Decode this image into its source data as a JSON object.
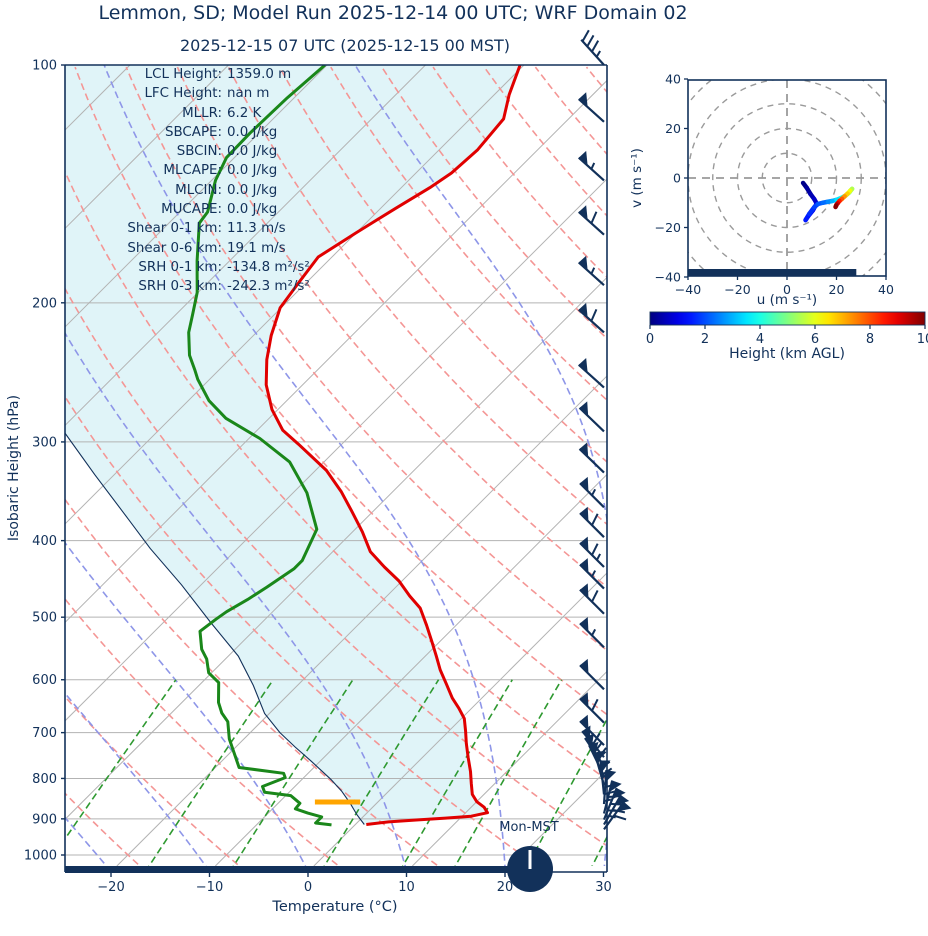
{
  "title": "Lemmon, SD; Model Run 2025-12-14 00 UTC; WRF Domain 02",
  "subtitle": "2025-12-15 07 UTC  (2025-12-15 00 MST)",
  "clock": {
    "label": "Mon-MST",
    "hand": "up"
  },
  "colors": {
    "navy": "#12315a",
    "temperature": "#e00000",
    "dewpoint": "#1a871a",
    "parcel": "#12315a",
    "dry_adiabat": "#f49695",
    "moist_adiabat": "#8e96e8",
    "mixing_line": "#2e9930",
    "grid_gray": "#b3b3b3",
    "shade_fill": "#e0f4f8",
    "lcl_marker": "#ffa500"
  },
  "stats": [
    {
      "label": "LCL Height:",
      "value": "1359.0 m"
    },
    {
      "label": "LFC Height:",
      "value": "nan m"
    },
    {
      "label": "MLLR:",
      "value": "6.2 K"
    },
    {
      "label": "SBCAPE:",
      "value": "0.0 J/kg"
    },
    {
      "label": "SBCIN:",
      "value": "0.0 J/kg"
    },
    {
      "label": "MLCAPE:",
      "value": "0.0 J/kg"
    },
    {
      "label": "MLCIN:",
      "value": "0.0 J/kg"
    },
    {
      "label": "MUCAPE:",
      "value": "0.0 J/kg"
    },
    {
      "label": "Shear 0-1 km:",
      "value": "11.3 m/s"
    },
    {
      "label": "Shear 0-6 km:",
      "value": "19.1 m/s"
    },
    {
      "label": "SRH 0-1 km:",
      "value": "-134.8 m²/s²"
    },
    {
      "label": "SRH 0-3 km:",
      "value": "-242.3 m²/s²"
    }
  ],
  "chart_data": {
    "type": "line",
    "subtype": "skewt-log-p-sounding-with-hodograph",
    "skewt": {
      "xlabel": "Temperature (°C)",
      "ylabel": "Isobaric Height (hPa)",
      "pressure_ticks": [
        100,
        200,
        300,
        400,
        500,
        600,
        700,
        800,
        900,
        1000
      ],
      "temp_ticks": [
        -20,
        -10,
        0,
        10,
        20,
        30
      ],
      "p_range": [
        100,
        1050
      ],
      "skew_deg": 45,
      "isotherm_range": [
        -120,
        40,
        10
      ],
      "dry_adiabat_range": [
        -40,
        210,
        10
      ],
      "moist_adiabat_range": [
        -40,
        40,
        10
      ],
      "mixing_ratios_gkg": [
        0.4,
        1,
        2,
        4,
        7,
        10,
        16,
        24,
        32
      ],
      "mixing_line_top_hpa": 600,
      "temperature_profile": [
        [
          100,
          -60.4
        ],
        [
          109,
          -58.5
        ],
        [
          117,
          -56.6
        ],
        [
          128,
          -56.1
        ],
        [
          137,
          -56.4
        ],
        [
          143,
          -57.1
        ],
        [
          152,
          -58.5
        ],
        [
          163,
          -60.0
        ],
        [
          175,
          -61.4
        ],
        [
          188,
          -60.8
        ],
        [
          203,
          -60.1
        ],
        [
          220,
          -58.2
        ],
        [
          236,
          -56.2
        ],
        [
          254,
          -53.7
        ],
        [
          273,
          -50.6
        ],
        [
          290,
          -47.4
        ],
        [
          302,
          -44.4
        ],
        [
          326,
          -38.9
        ],
        [
          347,
          -35.2
        ],
        [
          367,
          -32.2
        ],
        [
          390,
          -29.0
        ],
        [
          413,
          -26.2
        ],
        [
          432,
          -23.2
        ],
        [
          450,
          -20.3
        ],
        [
          470,
          -17.7
        ],
        [
          487,
          -15.4
        ],
        [
          512,
          -13.0
        ],
        [
          537,
          -10.8
        ],
        [
          560,
          -8.9
        ],
        [
          583,
          -7.1
        ],
        [
          608,
          -5.0
        ],
        [
          633,
          -3.0
        ],
        [
          652,
          -1.3
        ],
        [
          672,
          0.3
        ],
        [
          697,
          1.7
        ],
        [
          722,
          3.0
        ],
        [
          752,
          4.6
        ],
        [
          784,
          6.3
        ],
        [
          812,
          7.6
        ],
        [
          838,
          8.8
        ],
        [
          856,
          10.0
        ],
        [
          870,
          11.3
        ],
        [
          884,
          12.2
        ],
        [
          893,
          10.9
        ],
        [
          898,
          8.5
        ],
        [
          903,
          5.7
        ],
        [
          908,
          3.1
        ],
        [
          915,
          1.1
        ]
      ],
      "dewpoint_profile": [
        [
          100,
          -80.2
        ],
        [
          110,
          -80.7
        ],
        [
          122,
          -80.9
        ],
        [
          131,
          -80.8
        ],
        [
          140,
          -79.6
        ],
        [
          153.5,
          -77.2
        ],
        [
          158.6,
          -76.9
        ],
        [
          177,
          -73.3
        ],
        [
          194,
          -70.1
        ],
        [
          207,
          -68.3
        ],
        [
          218,
          -66.9
        ],
        [
          233,
          -64.5
        ],
        [
          243,
          -62.5
        ],
        [
          250,
          -61.2
        ],
        [
          266,
          -57.9
        ],
        [
          280,
          -54.4
        ],
        [
          297,
          -48.9
        ],
        [
          318,
          -43.5
        ],
        [
          348,
          -38.6
        ],
        [
          387,
          -33.9
        ],
        [
          424,
          -32.2
        ],
        [
          434,
          -32.2
        ],
        [
          458,
          -33.1
        ],
        [
          475,
          -33.8
        ],
        [
          492,
          -34.7
        ],
        [
          503,
          -35.0
        ],
        [
          521,
          -35.4
        ],
        [
          549,
          -33.4
        ],
        [
          565,
          -31.9
        ],
        [
          588,
          -30.3
        ],
        [
          605,
          -28.3
        ],
        [
          641,
          -26.3
        ],
        [
          661,
          -24.9
        ],
        [
          678,
          -23.4
        ],
        [
          713,
          -21.5
        ],
        [
          775,
          -17.6
        ],
        [
          788,
          -12.5
        ],
        [
          798,
          -11.9
        ],
        [
          819,
          -13.3
        ],
        [
          833,
          -12.5
        ],
        [
          841,
          -9.5
        ],
        [
          860,
          -7.8
        ],
        [
          874,
          -7.7
        ],
        [
          885,
          -6.0
        ],
        [
          895,
          -4.2
        ],
        [
          911,
          -4.2
        ],
        [
          916,
          -2.4
        ]
      ],
      "parcel_path": [
        [
          292,
          -69.3
        ],
        [
          330,
          -62.0
        ],
        [
          370,
          -55.0
        ],
        [
          409,
          -48.9
        ],
        [
          455,
          -42.0
        ],
        [
          507,
          -35.3
        ],
        [
          560,
          -29.0
        ],
        [
          610,
          -24.5
        ],
        [
          662,
          -20.5
        ],
        [
          700,
          -17.0
        ],
        [
          730,
          -14.0
        ],
        [
          760,
          -11.0
        ],
        [
          802,
          -7.1
        ],
        [
          830,
          -4.8
        ],
        [
          860,
          -2.7
        ],
        [
          890,
          -0.8
        ],
        [
          915,
          0.9
        ]
      ],
      "lcl_marker": {
        "p": 857,
        "t_from": -6.4,
        "t_to": -1.8
      },
      "wind_barbs": [
        {
          "p": 100,
          "pen": 0,
          "full": 3,
          "half": 1,
          "ang": 48
        },
        {
          "p": 118,
          "pen": 1,
          "full": 0,
          "half": 0,
          "ang": 42
        },
        {
          "p": 140,
          "pen": 1,
          "full": 0,
          "half": 1,
          "ang": 42
        },
        {
          "p": 164,
          "pen": 1,
          "full": 1,
          "half": 0,
          "ang": 42
        },
        {
          "p": 190,
          "pen": 1,
          "full": 0,
          "half": 1,
          "ang": 42
        },
        {
          "p": 218,
          "pen": 1,
          "full": 1,
          "half": 0,
          "ang": 42
        },
        {
          "p": 256,
          "pen": 1,
          "full": 0,
          "half": 0,
          "ang": 42
        },
        {
          "p": 291,
          "pen": 1,
          "full": 0,
          "half": 0,
          "ang": 44
        },
        {
          "p": 328,
          "pen": 1,
          "full": 0,
          "half": 0,
          "ang": 44
        },
        {
          "p": 363,
          "pen": 1,
          "full": 0,
          "half": 1,
          "ang": 45
        },
        {
          "p": 396,
          "pen": 1,
          "full": 1,
          "half": 0,
          "ang": 45
        },
        {
          "p": 432,
          "pen": 1,
          "full": 1,
          "half": 1,
          "ang": 45
        },
        {
          "p": 460,
          "pen": 1,
          "full": 0,
          "half": 1,
          "ang": 45
        },
        {
          "p": 495,
          "pen": 1,
          "full": 1,
          "half": 0,
          "ang": 45
        },
        {
          "p": 546,
          "pen": 1,
          "full": 0,
          "half": 1,
          "ang": 45
        },
        {
          "p": 617,
          "pen": 1,
          "full": 0,
          "half": 0,
          "ang": 45
        },
        {
          "p": 680,
          "pen": 1,
          "full": 1,
          "half": 0,
          "ang": 45
        },
        {
          "p": 726,
          "pen": 1,
          "full": 0,
          "half": 0,
          "ang": 45
        },
        {
          "p": 752,
          "pen": 1,
          "full": 1,
          "half": 0,
          "ang": 50
        },
        {
          "p": 772,
          "pen": 1,
          "full": 2,
          "half": 0,
          "ang": 56
        },
        {
          "p": 794,
          "pen": 1,
          "full": 1,
          "half": 1,
          "ang": 64
        },
        {
          "p": 816,
          "pen": 1,
          "full": 2,
          "half": 0,
          "ang": 74
        },
        {
          "p": 838,
          "pen": 1,
          "full": 1,
          "half": 0,
          "ang": 84
        },
        {
          "p": 862,
          "pen": 1,
          "full": 2,
          "half": 1,
          "ang": 94
        },
        {
          "p": 886,
          "pen": 1,
          "full": 1,
          "half": 0,
          "ang": 104
        },
        {
          "p": 902,
          "pen": 1,
          "full": 2,
          "half": 0,
          "ang": 112
        },
        {
          "p": 915,
          "pen": 1,
          "full": 1,
          "half": 1,
          "ang": 120
        },
        {
          "p": 928,
          "pen": 1,
          "full": 1,
          "half": 0,
          "ang": 126
        }
      ]
    },
    "hodograph": {
      "xlabel": "u (m s⁻¹)",
      "ylabel": "v (m s⁻¹)",
      "u_ticks": [
        -40,
        -20,
        0,
        20,
        40
      ],
      "v_ticks": [
        -40,
        -20,
        0,
        20,
        40
      ],
      "ring_radii": [
        10,
        20,
        30,
        40,
        50
      ],
      "axis_range": [
        -40,
        40
      ],
      "surface_bar_u": [
        -40,
        28
      ],
      "trace_uvh": [
        [
          6.5,
          -2,
          0
        ],
        [
          8,
          -4,
          0.2
        ],
        [
          9.5,
          -6.5,
          0.4
        ],
        [
          11,
          -8.5,
          0.6
        ],
        [
          12,
          -10.3,
          0.8
        ],
        [
          10.5,
          -13,
          1.0
        ],
        [
          8.5,
          -15.5,
          1.2
        ],
        [
          7.5,
          -17,
          1.4
        ],
        [
          9,
          -14.5,
          1.6
        ],
        [
          11,
          -11.8,
          1.8
        ],
        [
          12.5,
          -10.5,
          2.0
        ],
        [
          14.5,
          -10,
          2.2
        ],
        [
          16.5,
          -9.6,
          2.4
        ],
        [
          18.2,
          -9.3,
          2.8
        ],
        [
          20,
          -8.8,
          3.2
        ],
        [
          22,
          -8,
          3.8
        ],
        [
          23.8,
          -7,
          4.4
        ],
        [
          25.2,
          -5.8,
          4.8
        ],
        [
          26.3,
          -4.4,
          5.2
        ],
        [
          25.5,
          -5.2,
          5.8
        ],
        [
          24.5,
          -6.3,
          6.4
        ],
        [
          23.3,
          -7.4,
          7.0
        ],
        [
          22.2,
          -8.4,
          7.6
        ],
        [
          21.2,
          -9.3,
          8.2
        ],
        [
          20.5,
          -10.2,
          8.8
        ],
        [
          20,
          -10.8,
          9.4
        ],
        [
          19.8,
          -11.3,
          9.8
        ],
        [
          19.6,
          -11.7,
          10
        ]
      ]
    },
    "colorbar": {
      "label": "Height (km AGL)",
      "ticks": [
        0,
        2,
        4,
        6,
        8,
        10
      ],
      "range": [
        0,
        10
      ],
      "cmap": "jet"
    }
  }
}
